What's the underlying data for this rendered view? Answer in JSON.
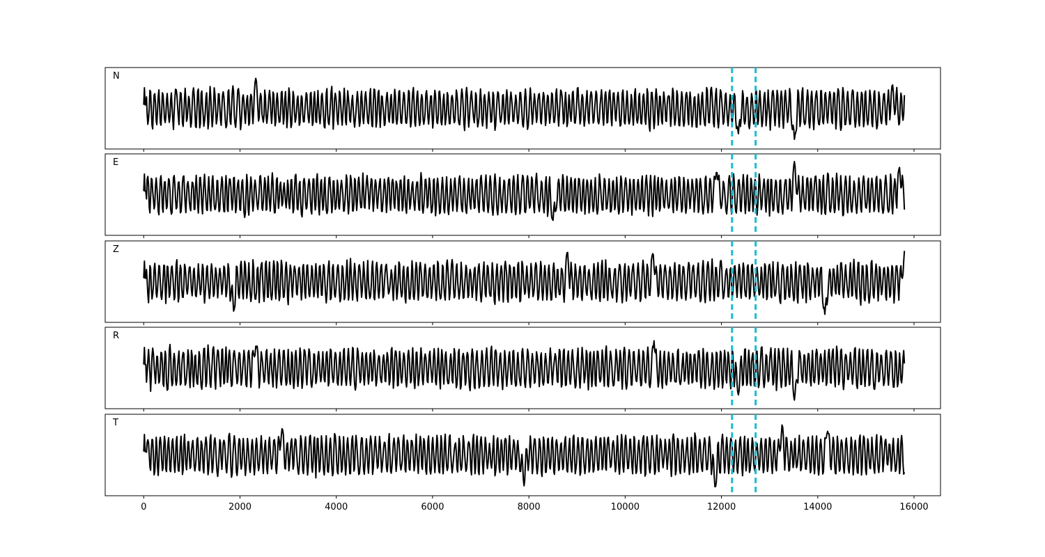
{
  "chart_data": {
    "type": "line",
    "title": "",
    "xlabel": "",
    "ylabel": "",
    "xlim": [
      -800,
      16550
    ],
    "x_ticks": [
      0,
      2000,
      4000,
      6000,
      8000,
      10000,
      12000,
      14000,
      16000
    ],
    "x_tick_labels": [
      "0",
      "2000",
      "4000",
      "6000",
      "8000",
      "10000",
      "12000",
      "14000",
      "16000"
    ],
    "marker_x": [
      12220,
      12710
    ],
    "marker_color": "#17becf",
    "trace_color": "#000000",
    "grid": false,
    "legend": false,
    "panels": [
      {
        "label": "N",
        "x_start": 0,
        "x_end": 15800,
        "events": [
          {
            "x": 2330,
            "amp": 0.9
          },
          {
            "x": 12350,
            "amp": -0.8
          },
          {
            "x": 13520,
            "amp": -1.0
          },
          {
            "x": 15550,
            "amp": 0.7
          }
        ]
      },
      {
        "label": "E",
        "x_start": 0,
        "x_end": 15800,
        "events": [
          {
            "x": 8500,
            "amp": -0.8
          },
          {
            "x": 11900,
            "amp": 0.8
          },
          {
            "x": 13520,
            "amp": 1.0
          },
          {
            "x": 15700,
            "amp": 0.8
          }
        ]
      },
      {
        "label": "Z",
        "x_start": 0,
        "x_end": 15800,
        "events": [
          {
            "x": 1870,
            "amp": -0.9
          },
          {
            "x": 8800,
            "amp": 0.9
          },
          {
            "x": 10580,
            "amp": 0.9
          },
          {
            "x": 14150,
            "amp": -1.0
          },
          {
            "x": 15800,
            "amp": 0.9
          }
        ]
      },
      {
        "label": "R",
        "x_start": 0,
        "x_end": 15800,
        "events": [
          {
            "x": 2330,
            "amp": 0.7
          },
          {
            "x": 10600,
            "amp": 0.8
          },
          {
            "x": 12350,
            "amp": -0.8
          },
          {
            "x": 13520,
            "amp": -1.0
          }
        ]
      },
      {
        "label": "T",
        "x_start": 0,
        "x_end": 15800,
        "events": [
          {
            "x": 2870,
            "amp": 0.8
          },
          {
            "x": 7900,
            "amp": -0.9
          },
          {
            "x": 11870,
            "amp": -1.0
          },
          {
            "x": 13260,
            "amp": 0.9
          },
          {
            "x": 14200,
            "amp": 0.8
          }
        ]
      }
    ]
  }
}
